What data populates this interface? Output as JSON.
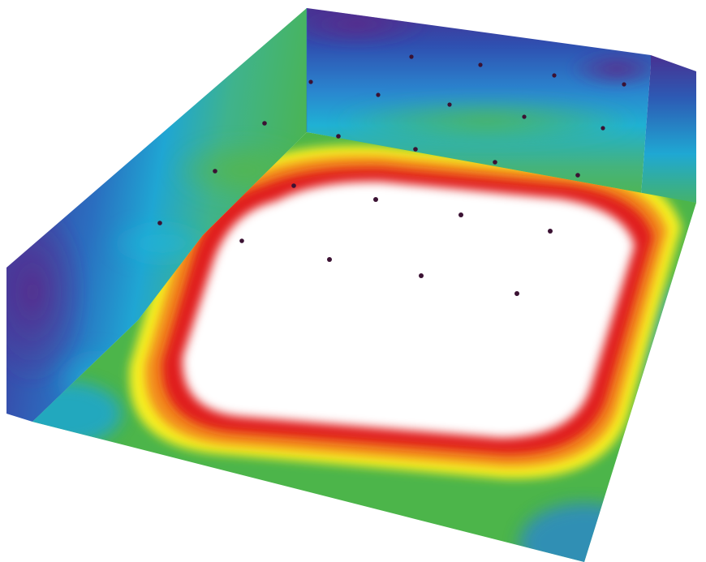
{
  "figure": {
    "kind": "3d-heatmap-room-rendering",
    "surfaces": [
      "left-wall",
      "back-wall",
      "right-wall-stub",
      "floor"
    ],
    "colormap": [
      "#ffffff",
      "#e01e1e",
      "#f07a1e",
      "#f3f01e",
      "#49b13f",
      "#19a6d6",
      "#2a5fb5",
      "#4c2a8c"
    ],
    "marker_color": "#3b1233",
    "floor_markers_grid": "3x3",
    "back_wall_marker_rows": 3,
    "left_wall_marker_rows": 3
  }
}
